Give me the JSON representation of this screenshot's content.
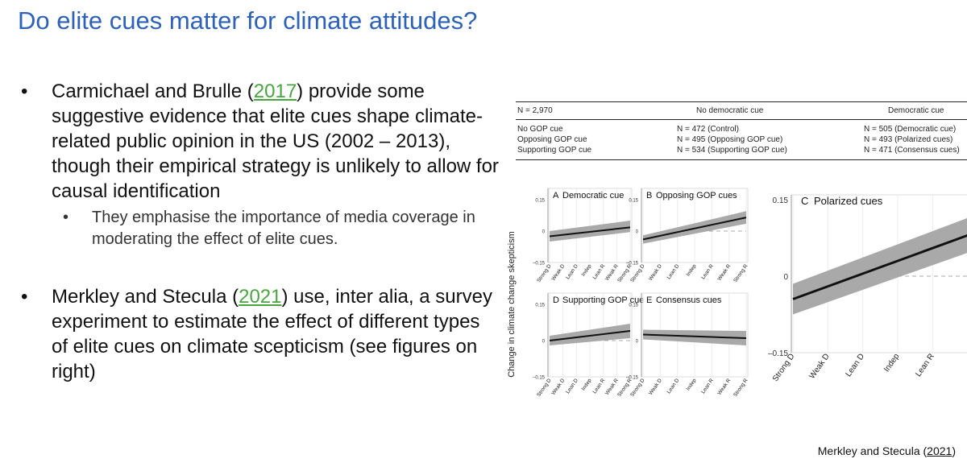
{
  "slide": {
    "title": "Do elite cues matter for climate attitudes?",
    "bullet1": {
      "before": "Carmichael and Brulle (",
      "link": "2017",
      "after": ") provide some suggestive evidence that elite cues shape climate-related public opinion in the US (2002 – 2013), though their empirical strategy is unlikely to allow for causal identification"
    },
    "sub_bullet": "They emphasise the importance of media coverage in moderating the effect of elite cues.",
    "bullet2": {
      "before": "Merkley and Stecula (",
      "link": "2021",
      "after": ") use, inter alia, a survey experiment to estimate the effect of different types of elite cues on climate scepticism (see figures on right)"
    },
    "reference": {
      "before": "Merkley and Stecula (",
      "year": "2021",
      "after": ")"
    },
    "bullet_glyph": "•",
    "link_color": "#48a540",
    "title_color": "#2e62b8"
  },
  "design_table": {
    "n_label": "N = 2,970",
    "col_headers": [
      "No democratic cue",
      "Democratic cue"
    ],
    "rows": [
      {
        "label": "No GOP cue",
        "cells": [
          "N = 472 (Control)",
          "N = 505 (Democratic cue)"
        ]
      },
      {
        "label": "Opposing GOP cue",
        "cells": [
          "N = 495 (Opposing GOP cue)",
          "N = 493 (Polarized cues)"
        ]
      },
      {
        "label": "Supporting GOP cue",
        "cells": [
          "N = 534 (Supporting GOP cue)",
          "N = 471 (Consensus cues)"
        ]
      }
    ]
  },
  "chart_data": {
    "type": "line",
    "ylabel": "Change in climate change skepticism",
    "x_categories": [
      "Strong D",
      "Weak D",
      "Lean D",
      "Indep",
      "Lean R",
      "Weak R",
      "Strong R"
    ],
    "ylim": [
      -0.15,
      0.15
    ],
    "yticks": [
      0.15,
      0,
      -0.15
    ],
    "ytick_labels": [
      "0.15",
      "0",
      "–0.15"
    ],
    "panels": [
      {
        "letter": "A",
        "title": "Democratic cue",
        "line": [
          -0.025,
          0.018
        ],
        "ci_low": [
          -0.05,
          -0.005
        ],
        "ci_high": [
          0.0,
          0.05
        ]
      },
      {
        "letter": "B",
        "title": "Opposing GOP cues",
        "line": [
          -0.04,
          0.065
        ],
        "ci_low": [
          -0.06,
          0.035
        ],
        "ci_high": [
          -0.02,
          0.095
        ]
      },
      {
        "letter": "C",
        "title": "Polarized cues",
        "line": [
          -0.045,
          0.105
        ],
        "ci_low": [
          -0.075,
          0.07
        ],
        "ci_high": [
          -0.015,
          0.14
        ]
      },
      {
        "letter": "D",
        "title": "Supporting GOP cue",
        "line": [
          0.0,
          0.04
        ],
        "ci_low": [
          -0.02,
          0.01
        ],
        "ci_high": [
          0.02,
          0.07
        ]
      },
      {
        "letter": "E",
        "title": "Consensus cues",
        "line": [
          0.025,
          0.01
        ],
        "ci_low": [
          0.005,
          -0.02
        ],
        "ci_high": [
          0.045,
          0.04
        ]
      }
    ],
    "band_color": "#a9a9a9",
    "line_color": "#111111"
  }
}
